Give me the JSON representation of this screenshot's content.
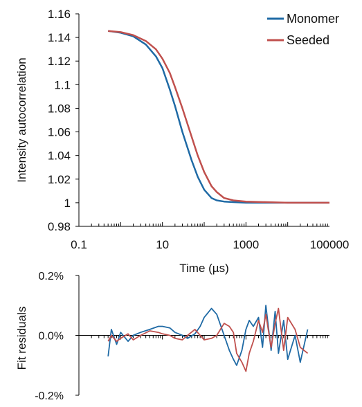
{
  "colors": {
    "monomer": "#1f6aa5",
    "seeded": "#c0504d",
    "axis": "#000000"
  },
  "chart_data": [
    {
      "type": "line",
      "xlabel": "Time (µs)",
      "ylabel": "Intensity autocorrelation",
      "x_scale": "log",
      "xlim": [
        0.1,
        100000
      ],
      "ylim": [
        0.98,
        1.16
      ],
      "x_ticks": [
        0.1,
        10,
        1000,
        100000
      ],
      "x_tick_labels": [
        "0.1",
        "10",
        "1000",
        "100000"
      ],
      "y_ticks": [
        0.98,
        1,
        1.02,
        1.04,
        1.06,
        1.08,
        1.1,
        1.12,
        1.14,
        1.16
      ],
      "y_tick_labels": [
        "0.98",
        "1",
        "1.02",
        "1.04",
        "1.06",
        "1.08",
        "1.1",
        "1.12",
        "1.14",
        "1.16"
      ],
      "legend": "top-right",
      "series": [
        {
          "name": "Monomer",
          "x": [
            0.5,
            1,
            2,
            4,
            7,
            10,
            15,
            20,
            30,
            50,
            70,
            100,
            150,
            200,
            300,
            500,
            1000,
            3000,
            10000,
            100000
          ],
          "y": [
            1.1455,
            1.144,
            1.141,
            1.134,
            1.124,
            1.114,
            1.096,
            1.082,
            1.06,
            1.036,
            1.022,
            1.011,
            1.004,
            1.002,
            1.001,
            1.0005,
            1.0,
            1.0,
            1.0,
            1.0
          ]
        },
        {
          "name": "Seeded",
          "x": [
            0.5,
            1,
            2,
            4,
            7,
            10,
            15,
            20,
            30,
            50,
            70,
            100,
            150,
            200,
            300,
            500,
            1000,
            3000,
            10000,
            100000
          ],
          "y": [
            1.1455,
            1.1445,
            1.142,
            1.137,
            1.13,
            1.122,
            1.11,
            1.098,
            1.08,
            1.056,
            1.04,
            1.026,
            1.014,
            1.009,
            1.004,
            1.002,
            1.001,
            1.0005,
            1.0,
            1.0
          ]
        }
      ]
    },
    {
      "type": "line",
      "ylabel": "Fit residuals",
      "x_scale": "log",
      "xlim": [
        0.1,
        100000
      ],
      "ylim": [
        -0.2,
        0.2
      ],
      "y_ticks": [
        0.2,
        0.0,
        -0.2
      ],
      "y_tick_labels": [
        "0.2%",
        "0.0%",
        "-0.2%"
      ],
      "series": [
        {
          "name": "Monomer",
          "x": [
            0.5,
            0.6,
            0.8,
            1,
            1.5,
            2,
            3,
            5,
            8,
            10,
            15,
            20,
            30,
            40,
            60,
            80,
            100,
            150,
            200,
            300,
            400,
            500,
            600,
            800,
            1000,
            1200,
            1500,
            2000,
            2500,
            3000,
            4000,
            5000,
            6000,
            8000,
            10000,
            15000,
            20000,
            30000
          ],
          "y": [
            -0.07,
            0.02,
            -0.03,
            0.01,
            -0.02,
            0.0,
            0.01,
            0.02,
            0.03,
            0.03,
            0.025,
            0.01,
            0.0,
            -0.01,
            0.005,
            0.03,
            0.06,
            0.09,
            0.07,
            0.0,
            -0.05,
            -0.08,
            -0.1,
            -0.05,
            0.02,
            0.05,
            0.03,
            0.06,
            -0.04,
            0.1,
            -0.05,
            0.08,
            -0.06,
            0.05,
            -0.08,
            0.0,
            -0.09,
            0.02
          ]
        },
        {
          "name": "Seeded",
          "x": [
            0.5,
            0.6,
            0.8,
            1,
            1.5,
            2,
            3,
            5,
            8,
            10,
            15,
            20,
            30,
            40,
            60,
            80,
            100,
            150,
            200,
            300,
            400,
            500,
            600,
            800,
            1000,
            1200,
            1500,
            2000,
            2500,
            3000,
            4000,
            5000,
            6000,
            8000,
            10000,
            15000,
            20000,
            30000
          ],
          "y": [
            -0.02,
            0.0,
            -0.02,
            -0.01,
            0.005,
            -0.015,
            0.0,
            0.015,
            0.01,
            0.005,
            0.0,
            -0.01,
            -0.015,
            0.0,
            0.02,
            0.0,
            -0.015,
            -0.01,
            0.0,
            0.04,
            0.03,
            0.01,
            -0.06,
            -0.09,
            -0.12,
            -0.06,
            -0.02,
            0.05,
            0.01,
            0.07,
            -0.04,
            0.04,
            0.09,
            -0.05,
            0.06,
            0.02,
            -0.04,
            -0.06
          ]
        }
      ]
    }
  ]
}
